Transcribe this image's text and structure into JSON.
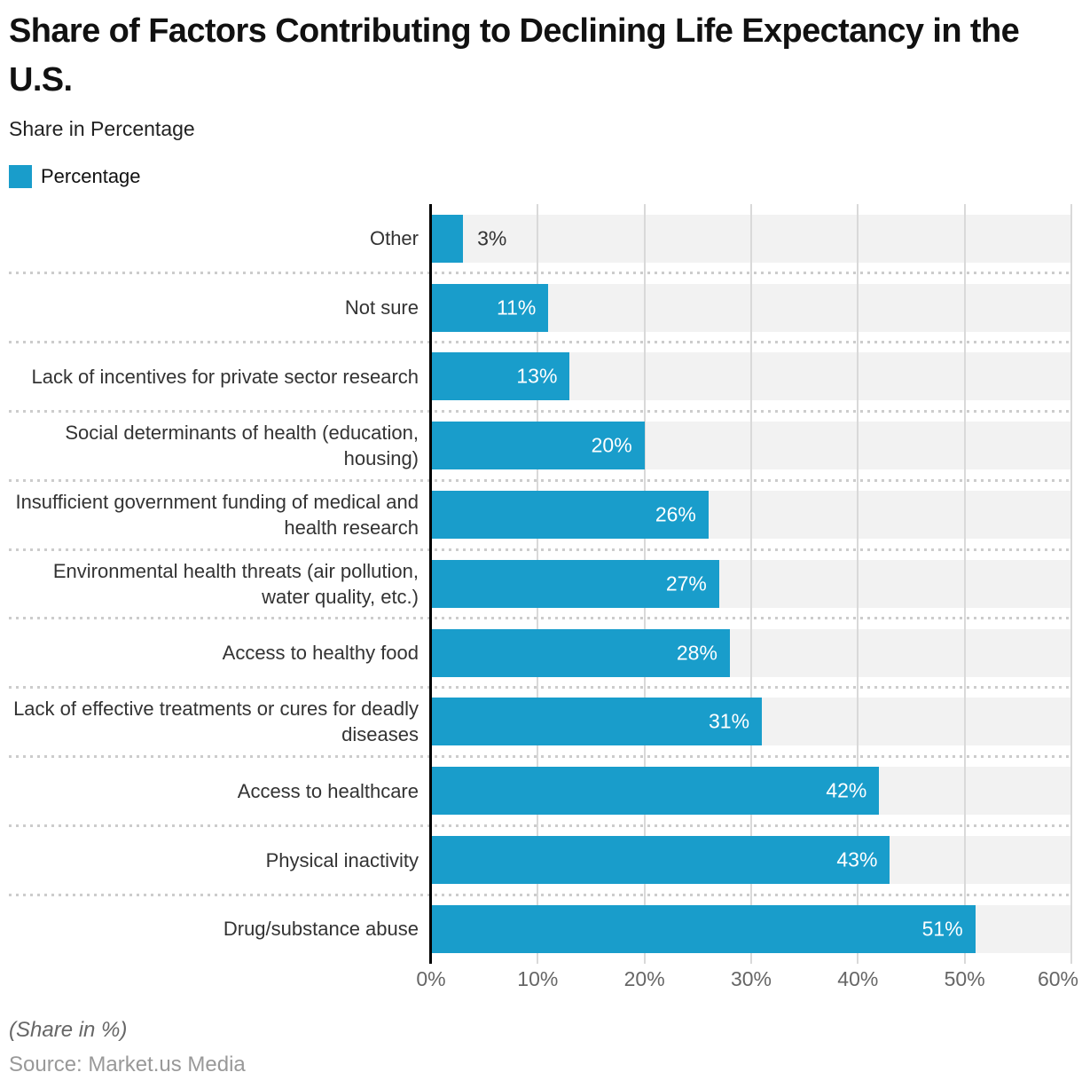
{
  "title": "Share of Factors Contributing to Declining Life Expectancy in the U.S.",
  "subtitle": "Share in Percentage",
  "legend": {
    "label": "Percentage"
  },
  "footer": {
    "note": "(Share in %)",
    "source": "Source: Market.us Media"
  },
  "colors": {
    "bar": "#199dcb",
    "track": "#f2f2f2",
    "gridline": "#d9d9d9",
    "axis_line": "#000000",
    "separator": "#cccccc",
    "value_label_inside": "#ffffff",
    "value_label_outside": "#333333"
  },
  "chart_data": {
    "type": "bar",
    "orientation": "horizontal",
    "title": "Share of Factors Contributing to Declining Life Expectancy in the U.S.",
    "subtitle": "Share in Percentage",
    "series_name": "Percentage",
    "categories": [
      "Other",
      "Not sure",
      "Lack of incentives for private sector research",
      "Social determinants of health (education, housing)",
      "Insufficient government funding of medical and health research",
      "Environmental health threats (air pollution, water quality, etc.)",
      "Access to healthy food",
      "Lack of effective treatments or cures for deadly diseases",
      "Access to healthcare",
      "Physical inactivity",
      "Drug/substance abuse"
    ],
    "values": [
      3,
      11,
      13,
      20,
      26,
      27,
      28,
      31,
      42,
      43,
      51
    ],
    "value_labels": [
      "3%",
      "11%",
      "13%",
      "20%",
      "26%",
      "27%",
      "28%",
      "31%",
      "42%",
      "43%",
      "51%"
    ],
    "xlabel": "",
    "ylabel": "",
    "xlim": [
      0,
      60
    ],
    "x_ticks": [
      "0%",
      "10%",
      "20%",
      "30%",
      "40%",
      "50%",
      "60%"
    ],
    "grid": true,
    "legend_position": "top-left"
  }
}
